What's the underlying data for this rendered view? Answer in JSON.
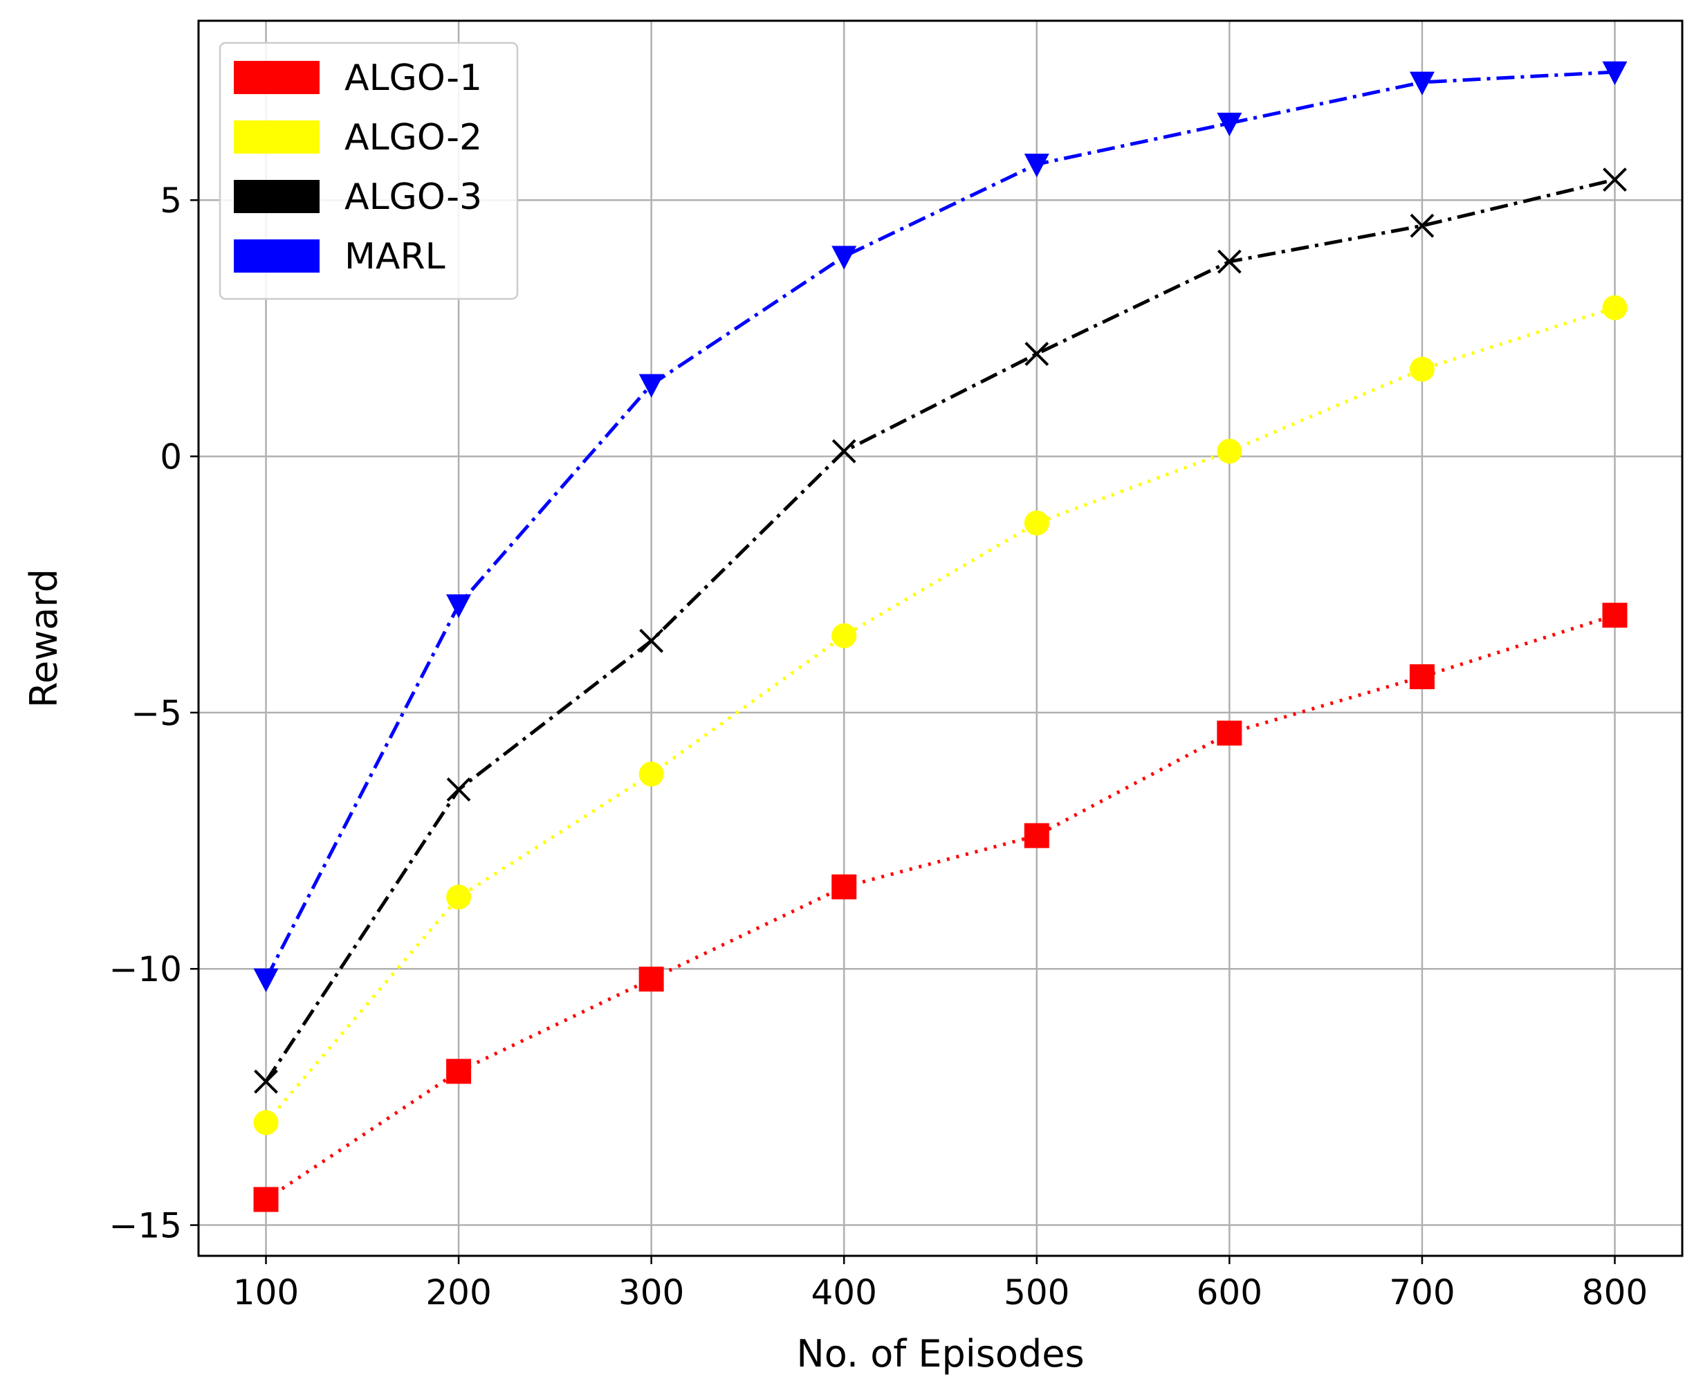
{
  "chart_data": {
    "type": "line",
    "title": "",
    "xlabel": "No. of Episodes",
    "ylabel": "Reward",
    "x": [
      100,
      200,
      300,
      400,
      500,
      600,
      700,
      800
    ],
    "xlim": [
      65,
      835
    ],
    "ylim": [
      -15.6,
      8.5
    ],
    "xticks": [
      100,
      200,
      300,
      400,
      500,
      600,
      700,
      800
    ],
    "xtick_labels": [
      "100",
      "200",
      "300",
      "400",
      "500",
      "600",
      "700",
      "800"
    ],
    "yticks": [
      5,
      0,
      -5,
      -10,
      -15
    ],
    "ytick_labels": [
      "5",
      "0",
      "−5",
      "−10",
      "−15"
    ],
    "grid": true,
    "legend_position": "top-left",
    "series": [
      {
        "name": "ALGO-1",
        "color": "#ff0000",
        "marker": "square",
        "linestyle": "dotted",
        "values": [
          -14.5,
          -12.0,
          -10.2,
          -8.4,
          -7.4,
          -5.4,
          -4.3,
          -3.1
        ]
      },
      {
        "name": "ALGO-2",
        "color": "#ffff00",
        "marker": "circle",
        "linestyle": "dotted",
        "values": [
          -13.0,
          -8.6,
          -6.2,
          -3.5,
          -1.3,
          0.1,
          1.7,
          2.9
        ]
      },
      {
        "name": "ALGO-3",
        "color": "#000000",
        "marker": "x",
        "linestyle": "dashdot",
        "values": [
          -12.2,
          -6.5,
          -3.6,
          0.1,
          2.0,
          3.8,
          4.5,
          5.4
        ]
      },
      {
        "name": "MARL",
        "color": "#0000ff",
        "marker": "triangle-down",
        "linestyle": "dashdot",
        "values": [
          -10.2,
          -2.9,
          1.4,
          3.9,
          5.7,
          6.5,
          7.3,
          7.5
        ]
      }
    ]
  }
}
